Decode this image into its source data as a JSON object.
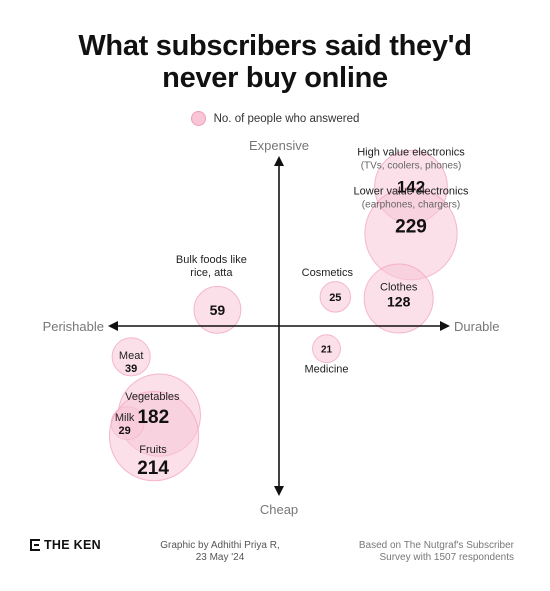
{
  "title_lines": [
    "What subscribers said they'd",
    "never buy online"
  ],
  "legend_label": "No. of people who answered",
  "chart_data": {
    "type": "scatter",
    "title": "What subscribers said they'd never buy online",
    "axes": {
      "y_top": "Expensive",
      "y_bottom": "Cheap",
      "x_left": "Perishable",
      "x_right": "Durable"
    },
    "point_color": "#f8c6d7",
    "point_stroke": "#f2a7c2",
    "points": [
      {
        "id": "high-value-electronics",
        "label": "High value electronics",
        "sublabel": "(TVs, coolers, phones)",
        "value": 142,
        "x": 0.75,
        "y": 0.86
      },
      {
        "id": "lower-value-electronics",
        "label": "Lower value electronics",
        "sublabel": "(earphones, chargers)",
        "value": 229,
        "x": 0.75,
        "y": 0.57
      },
      {
        "id": "cosmetics",
        "label": "Cosmetics",
        "sublabel": "",
        "value": 25,
        "x": 0.32,
        "y": 0.18
      },
      {
        "id": "clothes",
        "label": "Clothes",
        "sublabel": "",
        "value": 128,
        "x": 0.68,
        "y": 0.17
      },
      {
        "id": "bulk-foods",
        "label": "Bulk foods like",
        "sublabel": "rice, atta",
        "value": 59,
        "x": -0.35,
        "y": 0.1
      },
      {
        "id": "medicine",
        "label": "Medicine",
        "sublabel": "",
        "value": 21,
        "x": 0.27,
        "y": -0.14
      },
      {
        "id": "meat",
        "label": "Meat",
        "sublabel": "",
        "value": 39,
        "x": -0.84,
        "y": -0.19
      },
      {
        "id": "vegetables",
        "label": "Vegetables",
        "sublabel": "",
        "value": 182,
        "x": -0.68,
        "y": -0.55
      },
      {
        "id": "milk",
        "label": "Milk",
        "sublabel": "",
        "value": 29,
        "x": -0.86,
        "y": -0.6
      },
      {
        "id": "fruits",
        "label": "Fruits",
        "sublabel": "",
        "value": 214,
        "x": -0.71,
        "y": -0.68
      }
    ]
  },
  "footer": {
    "logo": "THE KEN",
    "credit_lines": [
      "Graphic by Adhithi Priya R,",
      "23 May '24"
    ],
    "source_lines": [
      "Based on The Nutgraf's Subscriber",
      "Survey with 1507 respondents"
    ]
  }
}
